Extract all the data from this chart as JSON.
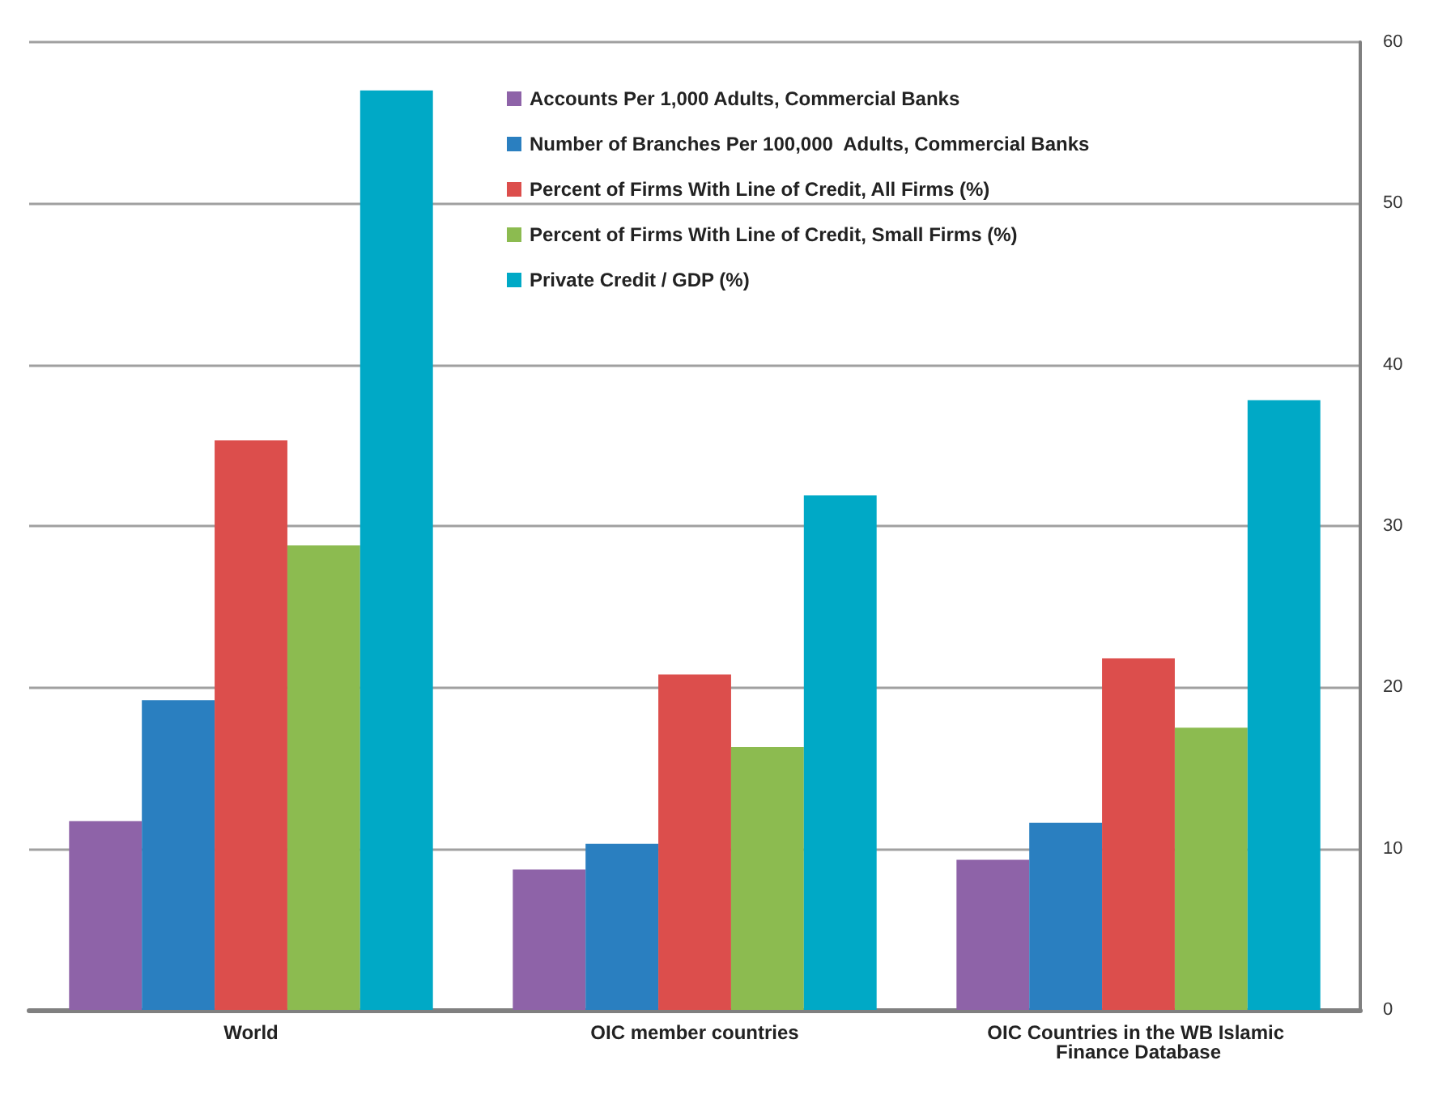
{
  "chart_data": {
    "type": "bar",
    "categories": [
      "World",
      "OIC member countries",
      "OIC Countries in the WB Islamic Finance Database"
    ],
    "series": [
      {
        "name": "Accounts Per 1,000 Adults, Commercial Banks",
        "color": "#8e63a8",
        "values": [
          11.7,
          8.7,
          9.3
        ]
      },
      {
        "name": "Number of Branches Per 100,000  Adults, Commercial Banks",
        "color": "#2a7fc0",
        "values": [
          19.2,
          10.3,
          11.6
        ]
      },
      {
        "name": "Percent of Firms With Line of Credit, All Firms (%)",
        "color": "#dc4e4c",
        "values": [
          35.3,
          20.8,
          21.8
        ]
      },
      {
        "name": "Percent of Firms With Line of Credit, Small Firms (%)",
        "color": "#8cbb50",
        "values": [
          28.8,
          16.3,
          17.5
        ]
      },
      {
        "name": "Private Credit / GDP (%)",
        "color": "#00a9c6",
        "values": [
          57.0,
          31.9,
          37.8
        ]
      }
    ],
    "ylim": [
      0,
      60
    ],
    "yticks": [
      0,
      10,
      20,
      30,
      40,
      50,
      60
    ],
    "grid": "y",
    "legend": "top"
  }
}
